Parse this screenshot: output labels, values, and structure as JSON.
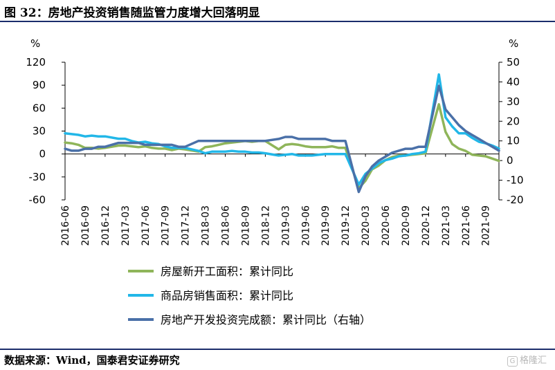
{
  "title": "图 32：房地产投资销售随监管力度增大回落明显",
  "source": "数据来源：Wind，国泰君安证券研究",
  "watermark": "格隆汇",
  "colors": {
    "green": "#8fb55a",
    "cyan": "#22b7e8",
    "navy": "#4a70a8",
    "rule": "#1a2c6b"
  },
  "chart_data": {
    "type": "line",
    "left_axis": {
      "unit": "%",
      "ylim": [
        -60,
        120
      ],
      "ticks": [
        120,
        90,
        60,
        30,
        0,
        -30,
        -60
      ]
    },
    "right_axis": {
      "unit": "%",
      "ylim": [
        -20,
        50
      ],
      "ticks": [
        50,
        40,
        30,
        20,
        10,
        0,
        -10,
        -20
      ]
    },
    "x_tick_labels": [
      "2016-06",
      "2016-09",
      "2016-12",
      "2017-03",
      "2017-06",
      "2017-09",
      "2017-12",
      "2018-03",
      "2018-06",
      "2018-09",
      "2018-12",
      "2019-03",
      "2019-06",
      "2019-09",
      "2019-12",
      "2020-03",
      "2020-06",
      "2020-09",
      "2020-12",
      "2021-03",
      "2021-06",
      "2021-09"
    ],
    "x": [
      "2016-06",
      "2016-07",
      "2016-08",
      "2016-09",
      "2016-10",
      "2016-11",
      "2016-12",
      "2017-02",
      "2017-03",
      "2017-04",
      "2017-05",
      "2017-06",
      "2017-07",
      "2017-08",
      "2017-09",
      "2017-10",
      "2017-11",
      "2017-12",
      "2018-02",
      "2018-03",
      "2018-04",
      "2018-05",
      "2018-06",
      "2018-07",
      "2018-08",
      "2018-09",
      "2018-10",
      "2018-11",
      "2018-12",
      "2019-02",
      "2019-03",
      "2019-04",
      "2019-05",
      "2019-06",
      "2019-07",
      "2019-08",
      "2019-09",
      "2019-10",
      "2019-11",
      "2019-12",
      "2020-02",
      "2020-03",
      "2020-04",
      "2020-05",
      "2020-06",
      "2020-07",
      "2020-08",
      "2020-09",
      "2020-10",
      "2020-11",
      "2020-12",
      "2021-02",
      "2021-03",
      "2021-04",
      "2021-05",
      "2021-06",
      "2021-07",
      "2021-08",
      "2021-09",
      "2021-10",
      "2021-11"
    ],
    "series": [
      {
        "name": "房屋新开工面积：累计同比",
        "axis": "left",
        "color": "#8fb55a",
        "values": [
          15,
          14,
          12,
          8,
          8,
          7,
          8,
          11,
          11,
          10,
          9,
          10,
          8,
          7,
          7,
          5,
          7,
          6,
          3,
          9,
          10,
          12,
          14,
          15,
          16,
          17,
          16,
          17,
          17,
          6,
          12,
          13,
          12,
          10,
          9,
          9,
          9,
          10,
          8,
          8,
          -45,
          -35,
          -20,
          -15,
          -8,
          -4,
          -2,
          -2,
          -1,
          0,
          1,
          65,
          29,
          13,
          7,
          4,
          -1,
          -2,
          -3,
          -6,
          -9
        ]
      },
      {
        "name": "商品房销售面积：累计同比",
        "axis": "left",
        "color": "#22b7e8",
        "values": [
          27,
          26,
          25,
          23,
          24,
          23,
          23,
          20,
          20,
          17,
          15,
          16,
          14,
          13,
          10,
          8,
          8,
          8,
          4,
          1,
          3,
          3,
          3,
          4,
          3,
          3,
          2,
          2,
          1,
          -2,
          -1,
          0,
          -2,
          -2,
          -2,
          -1,
          0,
          0,
          0,
          0,
          -40,
          -26,
          -19,
          -12,
          -8,
          -6,
          -3,
          -2,
          0,
          1,
          3,
          104,
          48,
          36,
          27,
          27,
          21,
          16,
          14,
          11,
          7
        ]
      },
      {
        "name": "房地产开发投资完成额：累计同比（右轴）",
        "axis": "right",
        "color": "#4a70a8",
        "values": [
          6,
          5,
          5,
          6,
          6,
          7,
          7,
          9,
          9,
          9,
          9,
          8,
          8,
          8,
          8,
          8,
          7,
          7,
          10,
          10,
          10,
          10,
          10,
          10,
          10,
          10,
          10,
          10,
          10,
          11,
          12,
          12,
          11,
          11,
          11,
          11,
          11,
          10,
          10,
          10,
          -16,
          -8,
          -3,
          0,
          2,
          4,
          5,
          6,
          6,
          7,
          7,
          38,
          26,
          22,
          18,
          15,
          13,
          11,
          9,
          7,
          5
        ]
      }
    ]
  }
}
